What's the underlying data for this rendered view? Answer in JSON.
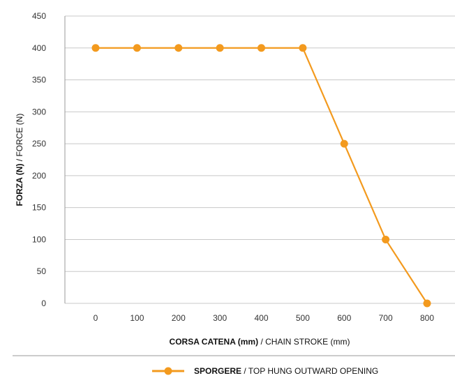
{
  "chart_data": {
    "type": "line",
    "x": [
      0,
      100,
      200,
      300,
      400,
      500,
      600,
      700,
      800
    ],
    "series": [
      {
        "name": "SPORGERE / TOP HUNG OUTWARD OPENING",
        "name_bold": "SPORGERE",
        "name_rest": " / TOP HUNG OUTWARD OPENING",
        "values": [
          400,
          400,
          400,
          400,
          400,
          400,
          250,
          100,
          0
        ],
        "color": "#f39a1e"
      }
    ],
    "x_tick_labels": [
      "0",
      "100",
      "200",
      "300",
      "400",
      "500",
      "600",
      "700",
      "800"
    ],
    "y_tick_labels": [
      "0",
      "50",
      "100",
      "150",
      "200",
      "250",
      "300",
      "350",
      "400",
      "450"
    ],
    "y_ticks": [
      0,
      50,
      100,
      150,
      200,
      250,
      300,
      350,
      400,
      450
    ],
    "xlabel": "CORSA CATENA (mm) / CHAIN STROKE (mm)",
    "xlabel_bold": "CORSA CATENA (mm)",
    "xlabel_rest": " / CHAIN STROKE (mm)",
    "ylabel": "FORZA (N) /  FORCE (N)",
    "ylabel_bold": "FORZA (N)",
    "ylabel_rest": " /  FORCE (N)",
    "ylim": [
      0,
      450
    ],
    "grid": "horizontal",
    "legend_position": "bottom-center",
    "gridline_color": "#c8c8c8"
  }
}
